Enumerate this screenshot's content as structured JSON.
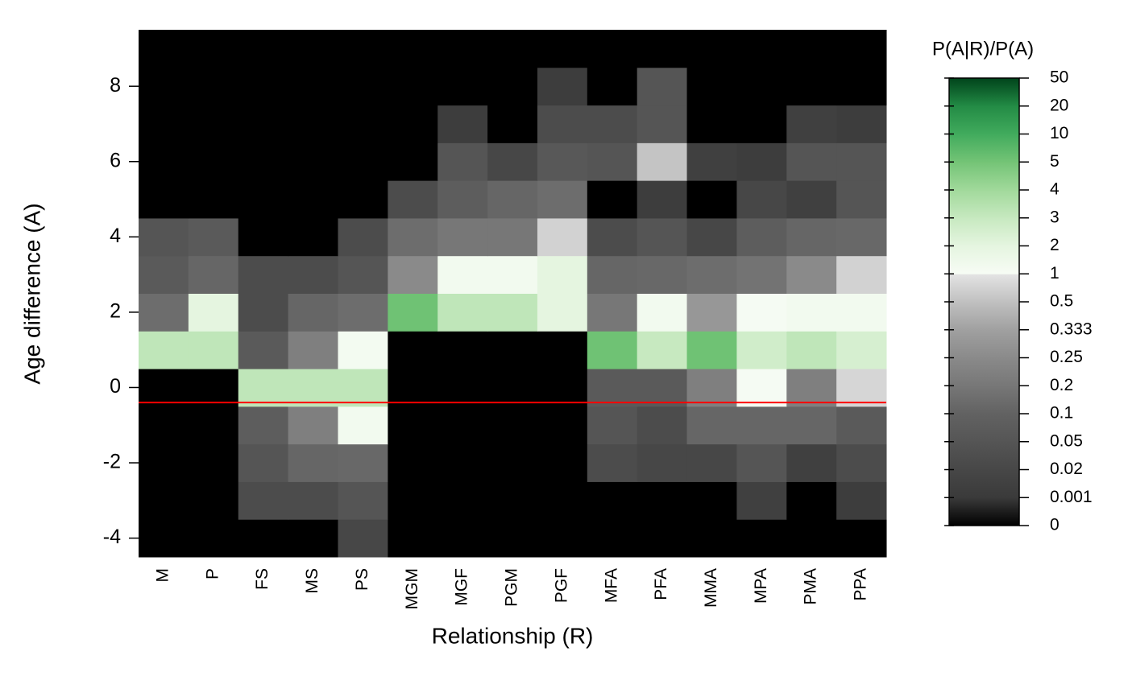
{
  "chart_data": {
    "type": "heatmap",
    "xlabel": "Relationship (R)",
    "ylabel": "Age difference (A)",
    "categories": [
      "M",
      "P",
      "FS",
      "MS",
      "PS",
      "MGM",
      "MGF",
      "PGM",
      "PGF",
      "MFA",
      "PFA",
      "MMA",
      "MPA",
      "PMA",
      "PPA"
    ],
    "y": [
      -4,
      -3,
      -2,
      -1,
      0,
      1,
      2,
      3,
      4,
      5,
      6,
      7,
      8,
      9
    ],
    "values": [
      [
        0,
        0,
        0,
        0,
        0.02,
        0,
        0,
        0,
        0,
        0,
        0,
        0,
        0,
        0,
        0
      ],
      [
        0,
        0,
        0.03,
        0.03,
        0.05,
        0,
        0,
        0,
        0,
        0,
        0,
        0,
        0.01,
        0,
        0.005
      ],
      [
        0,
        0,
        0.05,
        0.12,
        0.13,
        0,
        0,
        0,
        0,
        0.03,
        0.02,
        0.02,
        0.05,
        0.01,
        0.03
      ],
      [
        0,
        0,
        0.08,
        0.22,
        1.3,
        0,
        0,
        0,
        0,
        0.05,
        0.03,
        0.12,
        0.12,
        0.12,
        0.07
      ],
      [
        0,
        0,
        3.2,
        3.2,
        3.2,
        0,
        0,
        0,
        0,
        0.07,
        0.07,
        0.22,
        1.1,
        0.22,
        0.8
      ],
      [
        3.2,
        3.2,
        0.07,
        0.22,
        1.2,
        0,
        0,
        0,
        0,
        5.5,
        3,
        5.5,
        2.7,
        3.2,
        2.5
      ],
      [
        0.15,
        2,
        0.03,
        0.12,
        0.15,
        5.5,
        3.2,
        3.2,
        2,
        0.2,
        1.3,
        0.3,
        1.1,
        1.3,
        1.3
      ],
      [
        0.07,
        0.12,
        0.03,
        0.03,
        0.05,
        0.25,
        1.3,
        1.3,
        2,
        0.12,
        0.13,
        0.15,
        0.18,
        0.25,
        0.75
      ],
      [
        0.05,
        0.07,
        0,
        0,
        0.03,
        0.15,
        0.2,
        0.2,
        0.75,
        0.03,
        0.05,
        0.02,
        0.08,
        0.12,
        0.13
      ],
      [
        0,
        0,
        0,
        0,
        0,
        0.03,
        0.08,
        0.12,
        0.15,
        0,
        0.005,
        0,
        0.02,
        0.01,
        0.05
      ],
      [
        0,
        0,
        0,
        0,
        0,
        0,
        0.05,
        0.02,
        0.06,
        0.05,
        0.55,
        0.01,
        0.005,
        0.05,
        0.05
      ],
      [
        0,
        0,
        0,
        0,
        0,
        0,
        0.005,
        0,
        0.03,
        0.03,
        0.05,
        0,
        0,
        0.01,
        0.005
      ],
      [
        0,
        0,
        0,
        0,
        0,
        0,
        0,
        0,
        0.005,
        0,
        0.05,
        0,
        0,
        0,
        0
      ],
      [
        0,
        0,
        0,
        0,
        0,
        0,
        0,
        0,
        0,
        0,
        0,
        0,
        0,
        0,
        0
      ]
    ],
    "ylim": [
      -4.5,
      9.5
    ],
    "yticks": [
      -4,
      -2,
      0,
      2,
      4,
      6,
      8
    ],
    "reference_line": {
      "y": -0.4,
      "color": "#ff0000"
    },
    "colorbar": {
      "title": "P(A|R)/P(A)",
      "ticks": [
        0,
        0.001,
        0.02,
        0.05,
        0.1,
        0.2,
        0.25,
        0.333,
        0.5,
        1,
        2,
        3,
        4,
        5,
        10,
        20,
        50
      ],
      "gray_colors": [
        "#000000",
        "#3a3a3a",
        "#474747",
        "#555555",
        "#626262",
        "#777777",
        "#8a8a8a",
        "#a0a0a0",
        "#c0c0c0",
        "#e4e4e4"
      ],
      "green_colors": [
        "#f7fcf5",
        "#e5f5e0",
        "#c7e9c0",
        "#a1d99b",
        "#74c476",
        "#41ab5d",
        "#238b45",
        "#00441b"
      ]
    }
  }
}
